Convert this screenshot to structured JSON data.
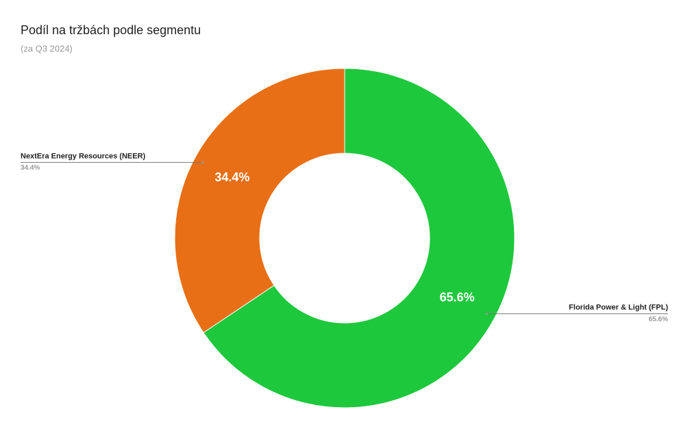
{
  "chart_data": {
    "type": "donut",
    "title": "Podíl na tržbách podle segmentu",
    "subtitle": "(za Q3 2024)",
    "categories": [
      "Florida Power & Light (FPL)",
      "NextEra Energy Resources (NEER)"
    ],
    "values": [
      65.6,
      34.4
    ],
    "value_labels": [
      "65.6%",
      "34.4%"
    ],
    "colors": [
      "#1ec83c",
      "#e86f16"
    ]
  }
}
